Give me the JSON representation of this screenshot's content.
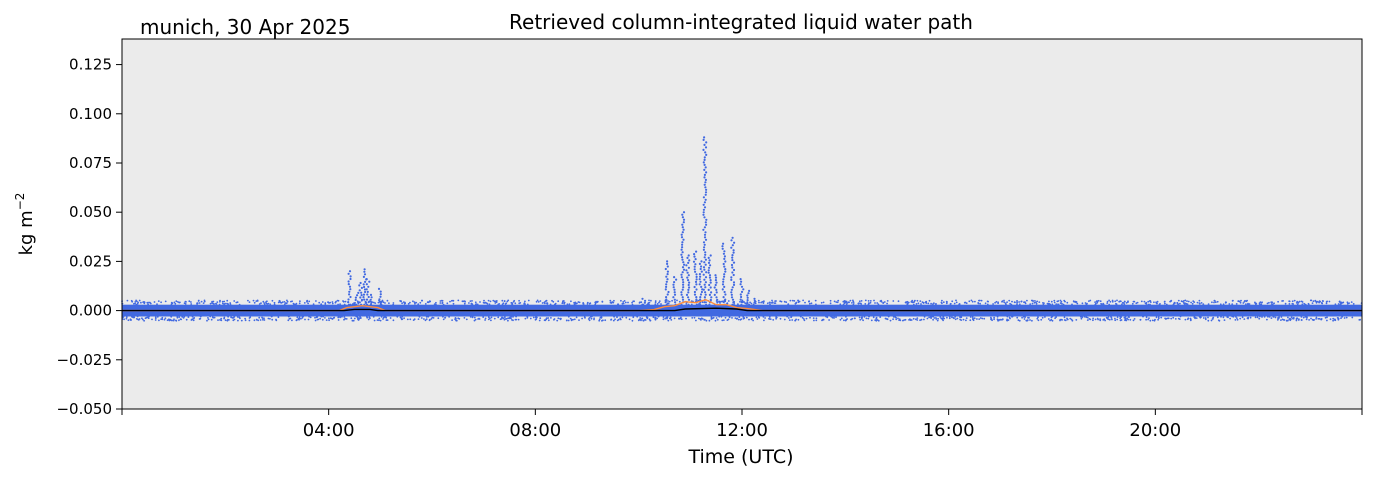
{
  "figure": {
    "site_label": "munich, 30 Apr 2025",
    "title": "Retrieved column-integrated liquid water path"
  },
  "chart_data": {
    "type": "scatter",
    "title": "Retrieved column-integrated liquid water path",
    "xlabel": "Time (UTC)",
    "ylabel": "kg m",
    "ylabel_exponent": "−2",
    "xlim": [
      0,
      24
    ],
    "ylim": [
      -0.05,
      0.138
    ],
    "grid": false,
    "background_color": "#ebebeb",
    "x_ticks": [
      {
        "value": 4,
        "label": "04:00"
      },
      {
        "value": 8,
        "label": "08:00"
      },
      {
        "value": 12,
        "label": "12:00"
      },
      {
        "value": 16,
        "label": "16:00"
      },
      {
        "value": 20,
        "label": "20:00"
      }
    ],
    "y_ticks": [
      {
        "value": -0.05,
        "label": "−0.050"
      },
      {
        "value": -0.025,
        "label": "−0.025"
      },
      {
        "value": 0.0,
        "label": "0.000"
      },
      {
        "value": 0.025,
        "label": "0.025"
      },
      {
        "value": 0.05,
        "label": "0.050"
      },
      {
        "value": 0.075,
        "label": "0.075"
      },
      {
        "value": 0.1,
        "label": "0.100"
      },
      {
        "value": 0.125,
        "label": "0.125"
      }
    ],
    "series": [
      {
        "kind": "scatter",
        "color": "#4169e1",
        "noise_band": [
          -0.003,
          0.003
        ],
        "points": [
          {
            "x": 4.4,
            "y": 0.02
          },
          {
            "x": 4.55,
            "y": 0.009
          },
          {
            "x": 4.62,
            "y": 0.014
          },
          {
            "x": 4.7,
            "y": 0.021
          },
          {
            "x": 4.76,
            "y": 0.016
          },
          {
            "x": 4.82,
            "y": 0.008
          },
          {
            "x": 5.0,
            "y": 0.011
          },
          {
            "x": 10.1,
            "y": 0.006
          },
          {
            "x": 10.55,
            "y": 0.025
          },
          {
            "x": 10.7,
            "y": 0.017
          },
          {
            "x": 10.85,
            "y": 0.05
          },
          {
            "x": 10.95,
            "y": 0.028
          },
          {
            "x": 11.1,
            "y": 0.03
          },
          {
            "x": 11.2,
            "y": 0.025
          },
          {
            "x": 11.28,
            "y": 0.088
          },
          {
            "x": 11.38,
            "y": 0.028
          },
          {
            "x": 11.5,
            "y": 0.018
          },
          {
            "x": 11.65,
            "y": 0.034
          },
          {
            "x": 11.82,
            "y": 0.037
          },
          {
            "x": 12.0,
            "y": 0.016
          },
          {
            "x": 12.12,
            "y": 0.01
          },
          {
            "x": 12.25,
            "y": 0.006
          }
        ]
      },
      {
        "kind": "line",
        "color": "#ff8c3a",
        "x": [
          0,
          4.2,
          4.35,
          4.5,
          4.65,
          4.8,
          4.95,
          5.1,
          10.0,
          10.3,
          10.5,
          10.7,
          10.9,
          11.1,
          11.3,
          11.5,
          11.7,
          11.9,
          12.1,
          12.4,
          24
        ],
        "y": [
          0.0,
          0.0,
          0.0015,
          0.002,
          0.0025,
          0.002,
          0.0015,
          0.0,
          0.0,
          0.0005,
          0.002,
          0.0025,
          0.0045,
          0.004,
          0.0055,
          0.003,
          0.003,
          0.0015,
          0.001,
          0.0,
          0.0
        ]
      },
      {
        "kind": "line",
        "color": "#000000",
        "x": [
          0,
          4.3,
          4.5,
          4.8,
          4.95,
          10.7,
          10.9,
          11.5,
          11.9,
          12.1,
          24
        ],
        "y": [
          0.0,
          0.0,
          0.0006,
          0.0006,
          0.0,
          0.0,
          0.0008,
          0.0012,
          0.0008,
          0.0,
          0.0
        ]
      }
    ]
  }
}
